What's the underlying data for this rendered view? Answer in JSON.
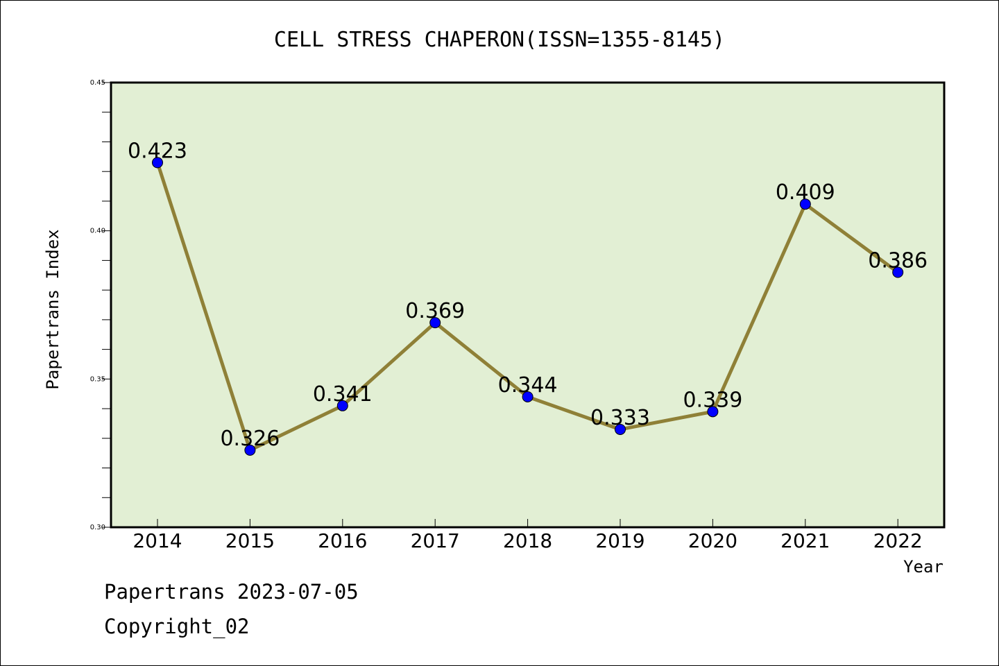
{
  "chart_data": {
    "type": "line",
    "title": "CELL STRESS CHAPERON(ISSN=1355-8145)",
    "xlabel": "Year",
    "ylabel": "Papertrans Index",
    "categories": [
      "2014",
      "2015",
      "2016",
      "2017",
      "2018",
      "2019",
      "2020",
      "2021",
      "2022"
    ],
    "values": [
      0.423,
      0.326,
      0.341,
      0.369,
      0.344,
      0.333,
      0.339,
      0.409,
      0.386
    ],
    "value_labels": [
      "0.423",
      "0.326",
      "0.341",
      "0.369",
      "0.344",
      "0.333",
      "0.339",
      "0.409",
      "0.386"
    ],
    "ylim": [
      0.3,
      0.45
    ],
    "y_ticks": [
      0.3,
      0.35,
      0.4,
      0.45
    ],
    "y_tick_labels": [
      "0.30",
      "0.35",
      "0.40",
      "0.45"
    ],
    "grid": false,
    "colors": {
      "plot_background": "#e2efd4",
      "line": "#8f8037",
      "marker": "#0000ff"
    }
  },
  "footer": {
    "line1": "Papertrans 2023-07-05",
    "line2": "Copyright_02"
  }
}
